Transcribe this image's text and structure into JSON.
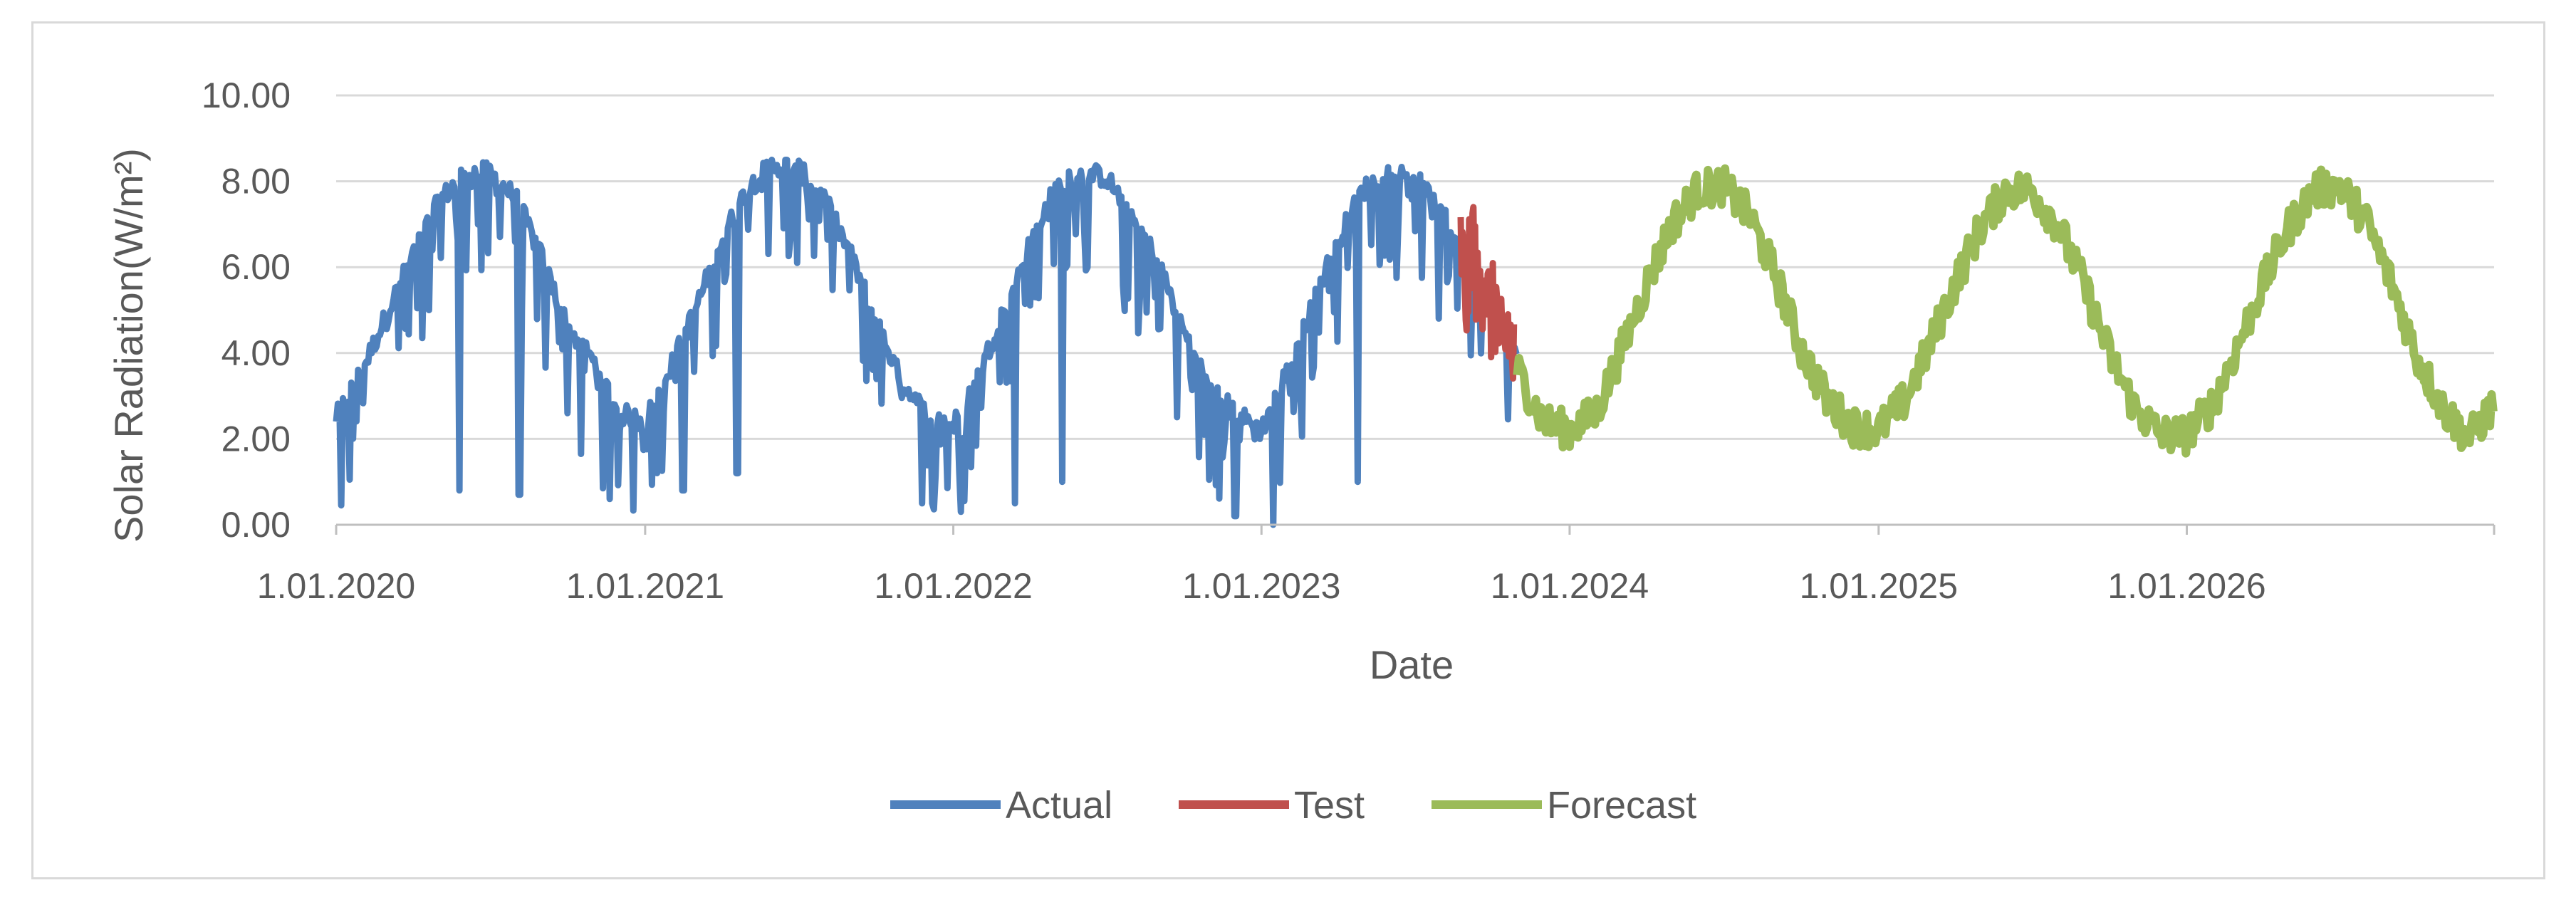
{
  "chart_data": {
    "type": "line",
    "title": "",
    "xlabel": "Date",
    "ylabel": "Solar Radiation(W/m²)",
    "ylim": [
      0,
      10
    ],
    "xlim": [
      "2020-01-01",
      "2026-12-31"
    ],
    "y_tick_labels": [
      "0.00",
      "2.00",
      "4.00",
      "6.00",
      "8.00",
      "10.00"
    ],
    "x_ticks": [
      "2020-01-01",
      "2021-01-01",
      "2022-01-01",
      "2023-01-01",
      "2024-01-01",
      "2025-01-01",
      "2026-01-01"
    ],
    "x_tick_labels": [
      "1.01.2020",
      "1.01.2021",
      "1.01.2022",
      "1.01.2023",
      "1.01.2024",
      "1.01.2025",
      "1.01.2026"
    ],
    "grid": "horizontal",
    "legend_position": "bottom",
    "series": [
      {
        "name": "Actual",
        "color": "#4f81bd",
        "x": [
          "2020-01-01",
          "2020-02-01",
          "2020-03-01",
          "2020-04-01",
          "2020-05-01",
          "2020-06-01",
          "2020-07-01",
          "2020-08-01",
          "2020-09-01",
          "2020-10-01",
          "2020-11-01",
          "2020-12-01",
          "2021-01-01",
          "2021-02-01",
          "2021-03-01",
          "2021-04-01",
          "2021-05-01",
          "2021-06-01",
          "2021-07-01",
          "2021-08-01",
          "2021-09-01",
          "2021-10-01",
          "2021-11-01",
          "2021-12-01",
          "2022-01-01",
          "2022-02-01",
          "2022-03-01",
          "2022-04-01",
          "2022-05-01",
          "2022-06-01",
          "2022-07-01",
          "2022-08-01",
          "2022-09-01",
          "2022-10-01",
          "2022-11-01",
          "2022-12-01",
          "2023-01-01",
          "2023-02-01",
          "2023-03-01",
          "2023-04-01",
          "2023-05-01",
          "2023-06-01",
          "2023-07-01",
          "2023-08-01",
          "2023-09-01",
          "2023-10-01",
          "2023-10-31"
        ],
        "y": [
          2.5,
          3.6,
          4.9,
          6.3,
          7.5,
          8.2,
          8.2,
          7.6,
          6.2,
          4.6,
          3.8,
          2.6,
          2.4,
          3.7,
          5.0,
          6.6,
          7.8,
          8.4,
          8.3,
          7.6,
          6.3,
          4.8,
          3.3,
          2.6,
          2.3,
          3.5,
          5.0,
          6.5,
          7.8,
          8.2,
          8.1,
          7.2,
          6.1,
          4.5,
          3.2,
          2.6,
          2.2,
          3.6,
          5.1,
          6.6,
          7.8,
          8.2,
          8.1,
          7.3,
          6.3,
          5.0,
          3.8
        ],
        "dips": [
          [
            "2020-05-26",
            0.8
          ],
          [
            "2020-08-05",
            0.7
          ],
          [
            "2020-11-20",
            0.6
          ],
          [
            "2021-02-15",
            0.8
          ],
          [
            "2021-04-20",
            1.2
          ],
          [
            "2021-11-25",
            0.5
          ],
          [
            "2022-03-15",
            0.5
          ],
          [
            "2022-05-10",
            1.0
          ],
          [
            "2022-12-01",
            0.2
          ],
          [
            "2023-01-15",
            0.0
          ],
          [
            "2023-04-25",
            1.0
          ]
        ]
      },
      {
        "name": "Test",
        "color": "#c0504d",
        "x": [
          "2023-08-25",
          "2023-09-01",
          "2023-09-08",
          "2023-09-15",
          "2023-09-22",
          "2023-09-29",
          "2023-10-06",
          "2023-10-13",
          "2023-10-20",
          "2023-10-27"
        ],
        "y": [
          6.5,
          5.2,
          6.9,
          5.0,
          6.0,
          4.8,
          5.1,
          3.9,
          4.6,
          3.8
        ]
      },
      {
        "name": "Forecast",
        "color": "#9bbb59",
        "x": [
          "2023-10-31",
          "2023-12-01",
          "2024-01-01",
          "2024-02-01",
          "2024-03-01",
          "2024-04-01",
          "2024-05-01",
          "2024-06-01",
          "2024-07-01",
          "2024-08-01",
          "2024-09-01",
          "2024-10-01",
          "2024-11-01",
          "2024-12-01",
          "2025-01-01",
          "2025-02-01",
          "2025-03-01",
          "2025-04-01",
          "2025-05-01",
          "2025-06-01",
          "2025-07-01",
          "2025-08-01",
          "2025-09-01",
          "2025-10-01",
          "2025-11-01",
          "2025-12-01",
          "2026-01-01",
          "2026-02-01",
          "2026-03-01",
          "2026-04-01",
          "2026-05-01",
          "2026-06-01",
          "2026-07-01",
          "2026-08-01",
          "2026-09-01",
          "2026-10-01",
          "2026-11-01",
          "2026-12-01",
          "2026-12-31"
        ],
        "y": [
          3.6,
          2.4,
          2.2,
          2.6,
          4.0,
          5.6,
          7.0,
          7.8,
          7.9,
          7.2,
          5.8,
          4.1,
          2.9,
          2.3,
          2.2,
          2.9,
          4.1,
          5.6,
          6.9,
          7.8,
          7.8,
          7.0,
          5.6,
          4.0,
          2.7,
          2.1,
          2.1,
          2.8,
          4.1,
          5.6,
          6.9,
          7.8,
          7.9,
          7.1,
          5.6,
          3.9,
          2.7,
          2.0,
          2.8
        ]
      }
    ]
  }
}
